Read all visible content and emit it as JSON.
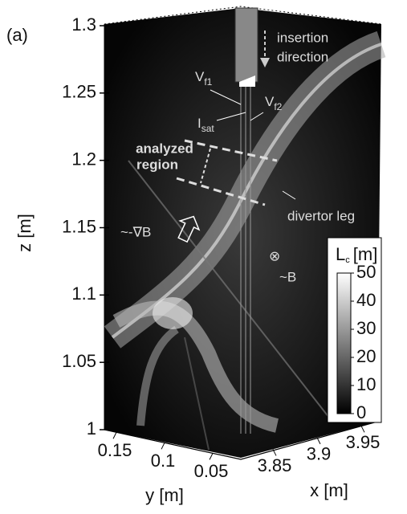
{
  "chart_data": {
    "type": "volume-image",
    "panel_label": "(a)",
    "zlabel": "z [m]",
    "zlim": [
      1,
      1.3
    ],
    "zticks": [
      1,
      1.05,
      1.1,
      1.15,
      1.2,
      1.25,
      1.3
    ],
    "ylabel": "y [m]",
    "ylim": [
      0.17,
      0.03
    ],
    "yticks": [
      0.15,
      0.1,
      0.05
    ],
    "xlabel": "x [m]",
    "xlim": [
      3.83,
      3.97
    ],
    "xticks": [
      3.85,
      3.9,
      3.95
    ],
    "colorbar": {
      "label": {
        "main": "L",
        "sub": "c",
        "rest": "[m]"
      },
      "clim": [
        0,
        50
      ],
      "cticks": [
        0,
        10,
        20,
        30,
        40,
        50
      ]
    },
    "annotations": {
      "insertion": [
        "insertion",
        "direction"
      ],
      "vf1": {
        "main": "V",
        "sub": "f1"
      },
      "isat": {
        "main": "I",
        "sub": "sat"
      },
      "vf2": {
        "main": "V",
        "sub": "f2"
      },
      "analyzed": [
        "analyzed",
        "region"
      ],
      "divertor": "divertor leg",
      "gradb": "~-∇B",
      "otimes": "⊗",
      "b": "~B"
    }
  }
}
